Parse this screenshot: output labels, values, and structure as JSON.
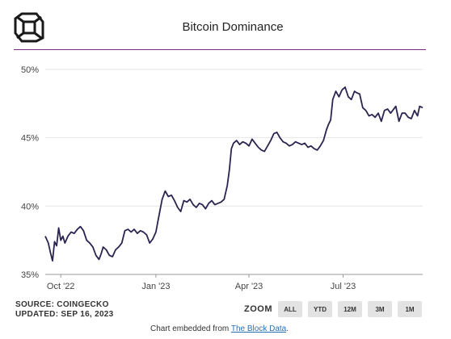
{
  "header": {
    "title": "Bitcoin Dominance",
    "logo_icon": "cube-logo-icon"
  },
  "source": {
    "line1": "SOURCE: COINGECKO",
    "line2": "UPDATED: SEP 16, 2023"
  },
  "zoom": {
    "label": "ZOOM",
    "buttons": [
      "ALL",
      "YTD",
      "12M",
      "3M",
      "1M"
    ]
  },
  "footer": {
    "prefix": "Chart embedded from ",
    "link_text": "The Block Data",
    "suffix": "."
  },
  "colors": {
    "line": "#2b2450",
    "grid": "#e6e6e6",
    "accent": "#7a2f7e"
  },
  "chart_data": {
    "type": "line",
    "title": "Bitcoin Dominance",
    "xlabel": "",
    "ylabel": "",
    "ylim": [
      35,
      50
    ],
    "yticks": [
      35,
      40,
      45,
      50
    ],
    "ytick_labels": [
      "35%",
      "40%",
      "45%",
      "50%"
    ],
    "xlim": [
      "2022-09-16",
      "2023-09-16"
    ],
    "xticks": [
      "2022-10-01",
      "2023-01-01",
      "2023-04-01",
      "2023-07-01"
    ],
    "xtick_labels": [
      "Oct '22",
      "Jan '23",
      "Apr '23",
      "Jul '23"
    ],
    "grid": true,
    "legend": "none",
    "series": [
      {
        "name": "",
        "x": [
          "2022-09-16",
          "2022-09-19",
          "2022-09-21",
          "2022-09-23",
          "2022-09-25",
          "2022-09-27",
          "2022-09-29",
          "2022-10-01",
          "2022-10-03",
          "2022-10-05",
          "2022-10-08",
          "2022-10-11",
          "2022-10-14",
          "2022-10-17",
          "2022-10-20",
          "2022-10-23",
          "2022-10-26",
          "2022-10-29",
          "2022-11-01",
          "2022-11-04",
          "2022-11-07",
          "2022-11-09",
          "2022-11-11",
          "2022-11-14",
          "2022-11-17",
          "2022-11-20",
          "2022-11-23",
          "2022-11-26",
          "2022-11-29",
          "2022-12-02",
          "2022-12-05",
          "2022-12-08",
          "2022-12-11",
          "2022-12-14",
          "2022-12-17",
          "2022-12-20",
          "2022-12-23",
          "2022-12-26",
          "2022-12-29",
          "2023-01-01",
          "2023-01-04",
          "2023-01-07",
          "2023-01-10",
          "2023-01-13",
          "2023-01-16",
          "2023-01-19",
          "2023-01-22",
          "2023-01-25",
          "2023-01-28",
          "2023-01-31",
          "2023-02-03",
          "2023-02-06",
          "2023-02-09",
          "2023-02-12",
          "2023-02-15",
          "2023-02-18",
          "2023-02-21",
          "2023-02-24",
          "2023-02-27",
          "2023-03-02",
          "2023-03-05",
          "2023-03-08",
          "2023-03-11",
          "2023-03-13",
          "2023-03-15",
          "2023-03-17",
          "2023-03-20",
          "2023-03-23",
          "2023-03-26",
          "2023-03-29",
          "2023-04-01",
          "2023-04-04",
          "2023-04-07",
          "2023-04-10",
          "2023-04-13",
          "2023-04-16",
          "2023-04-19",
          "2023-04-22",
          "2023-04-25",
          "2023-04-28",
          "2023-05-01",
          "2023-05-04",
          "2023-05-07",
          "2023-05-10",
          "2023-05-13",
          "2023-05-16",
          "2023-05-19",
          "2023-05-22",
          "2023-05-25",
          "2023-05-28",
          "2023-05-31",
          "2023-06-03",
          "2023-06-06",
          "2023-06-09",
          "2023-06-12",
          "2023-06-15",
          "2023-06-17",
          "2023-06-19",
          "2023-06-21",
          "2023-06-24",
          "2023-06-27",
          "2023-06-30",
          "2023-07-03",
          "2023-07-06",
          "2023-07-09",
          "2023-07-12",
          "2023-07-14",
          "2023-07-17",
          "2023-07-20",
          "2023-07-23",
          "2023-07-26",
          "2023-07-29",
          "2023-08-01",
          "2023-08-04",
          "2023-08-07",
          "2023-08-10",
          "2023-08-13",
          "2023-08-16",
          "2023-08-18",
          "2023-08-21",
          "2023-08-24",
          "2023-08-27",
          "2023-08-30",
          "2023-09-02",
          "2023-09-05",
          "2023-09-08",
          "2023-09-11",
          "2023-09-13",
          "2023-09-16"
        ],
        "values": [
          37.8,
          37.3,
          36.6,
          36.0,
          37.4,
          37.1,
          38.4,
          37.5,
          37.8,
          37.3,
          37.8,
          38.1,
          38.0,
          38.3,
          38.5,
          38.2,
          37.5,
          37.3,
          37.0,
          36.4,
          36.1,
          36.5,
          37.0,
          36.8,
          36.4,
          36.3,
          36.8,
          37.0,
          37.3,
          38.2,
          38.3,
          38.1,
          38.3,
          38.0,
          38.2,
          38.1,
          37.9,
          37.3,
          37.6,
          38.1,
          39.3,
          40.5,
          41.1,
          40.7,
          40.8,
          40.4,
          39.9,
          39.6,
          40.4,
          40.3,
          40.5,
          40.1,
          39.9,
          40.2,
          40.1,
          39.8,
          40.2,
          40.4,
          40.1,
          40.2,
          40.3,
          40.5,
          41.5,
          42.6,
          44.2,
          44.6,
          44.8,
          44.5,
          44.7,
          44.6,
          44.4,
          44.9,
          44.6,
          44.3,
          44.1,
          44.0,
          44.4,
          44.8,
          45.3,
          45.4,
          45.0,
          44.7,
          44.6,
          44.4,
          44.5,
          44.7,
          44.6,
          44.5,
          44.6,
          44.3,
          44.4,
          44.2,
          44.1,
          44.4,
          44.8,
          45.6,
          46.0,
          46.3,
          47.8,
          48.4,
          48.0,
          48.5,
          48.7,
          48.0,
          47.8,
          48.4,
          48.3,
          48.2,
          47.2,
          47.0,
          46.6,
          46.7,
          46.5,
          46.8,
          46.2,
          47.0,
          47.1,
          46.8,
          47.0,
          47.3,
          46.2,
          46.8,
          46.8,
          46.5,
          46.4,
          47.0,
          46.6,
          47.3,
          47.2
        ]
      }
    ]
  }
}
